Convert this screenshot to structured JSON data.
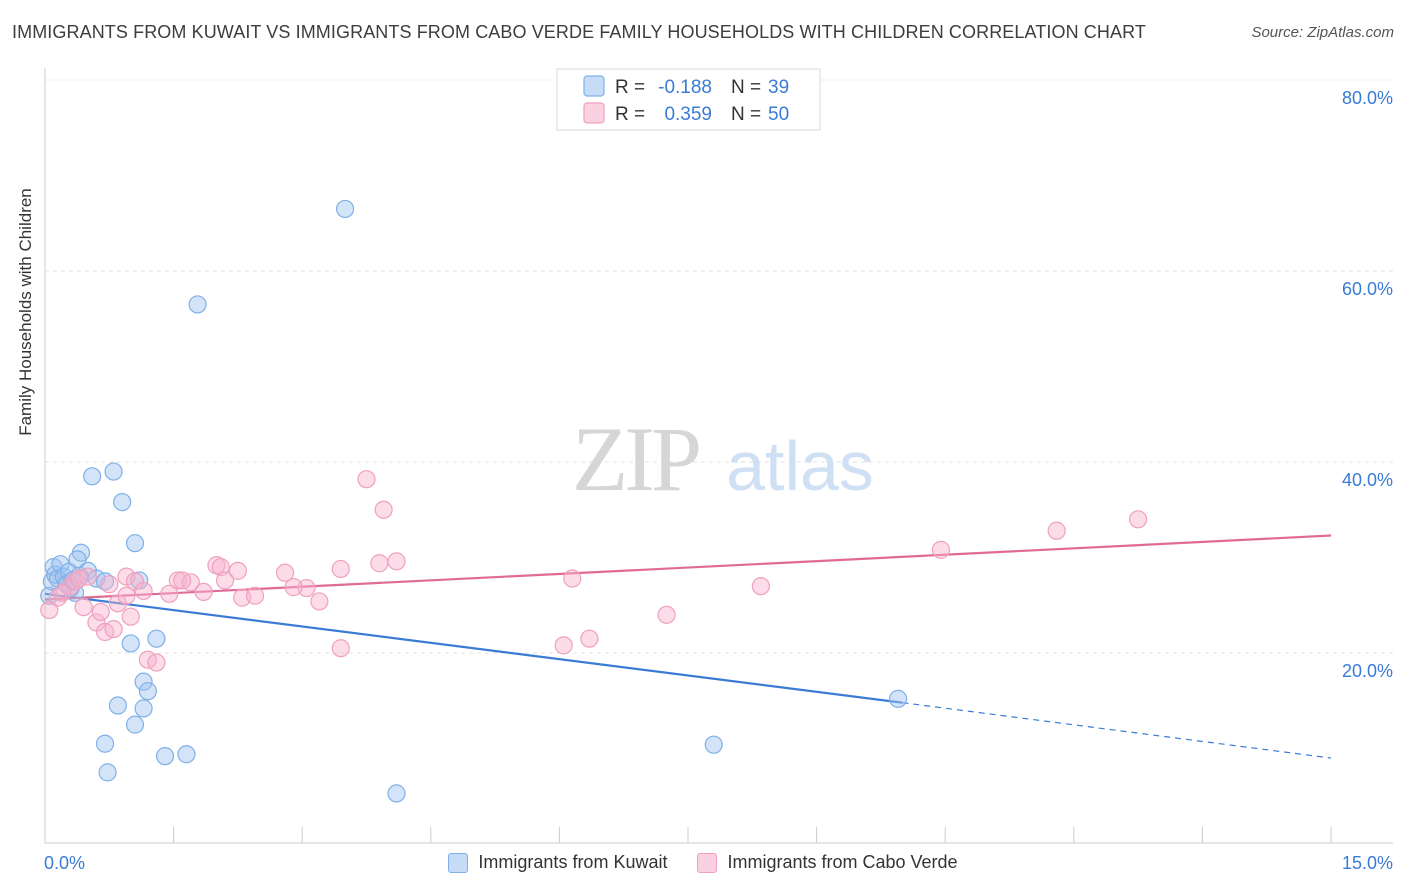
{
  "chart_data": {
    "type": "scatter",
    "title": "IMMIGRANTS FROM KUWAIT VS IMMIGRANTS FROM CABO VERDE FAMILY HOUSEHOLDS WITH CHILDREN CORRELATION CHART",
    "source": "Source: ZipAtlas.com",
    "xlabel": "",
    "ylabel": "Family Households with Children",
    "xlim": [
      0,
      15
    ],
    "ylim": [
      0,
      82
    ],
    "x_tick_labels": [
      "0.0%",
      "15.0%"
    ],
    "y_ticks": [
      20,
      40,
      60,
      80
    ],
    "y_tick_labels": [
      "20.0%",
      "40.0%",
      "60.0%",
      "80.0%"
    ],
    "watermark": {
      "zip": "ZIP",
      "atlas": "atlas"
    },
    "legend_box": {
      "r_label": "R =",
      "n_label": "N =",
      "rows": [
        {
          "r": "-0.188",
          "n": "39"
        },
        {
          "r": "0.359",
          "n": "50"
        }
      ]
    },
    "series": [
      {
        "name": "Immigrants from Kuwait",
        "color": "#7fb0e8",
        "fill": "rgba(160,196,240,0.45)",
        "line_color": "#3a7bd5",
        "points": [
          [
            0.05,
            26.0
          ],
          [
            0.08,
            27.5
          ],
          [
            0.1,
            29.0
          ],
          [
            0.12,
            28.2
          ],
          [
            0.15,
            27.8
          ],
          [
            0.18,
            29.3
          ],
          [
            0.22,
            28.0
          ],
          [
            0.25,
            27.2
          ],
          [
            0.28,
            28.5
          ],
          [
            0.32,
            27.6
          ],
          [
            0.35,
            26.3
          ],
          [
            0.4,
            28.1
          ],
          [
            0.42,
            30.5
          ],
          [
            0.38,
            29.8
          ],
          [
            0.5,
            28.6
          ],
          [
            0.55,
            38.5
          ],
          [
            0.6,
            27.8
          ],
          [
            0.7,
            27.5
          ],
          [
            0.8,
            39.0
          ],
          [
            0.9,
            35.8
          ],
          [
            1.05,
            31.5
          ],
          [
            1.1,
            27.6
          ],
          [
            1.3,
            21.5
          ],
          [
            1.0,
            21.0
          ],
          [
            1.15,
            17.0
          ],
          [
            1.2,
            16.0
          ],
          [
            0.85,
            14.5
          ],
          [
            1.15,
            14.2
          ],
          [
            1.05,
            12.5
          ],
          [
            0.7,
            10.5
          ],
          [
            0.73,
            7.5
          ],
          [
            1.4,
            9.2
          ],
          [
            1.65,
            9.4
          ],
          [
            1.78,
            56.5
          ],
          [
            3.5,
            66.5
          ],
          [
            4.1,
            5.3
          ],
          [
            7.8,
            10.4
          ],
          [
            9.95,
            15.2
          ],
          [
            0.3,
            26.8
          ]
        ],
        "trend": {
          "x1": 0.0,
          "y1": 26.2,
          "x2": 10.0,
          "y2": 14.8,
          "dash_x2": 15.0,
          "dash_y2": 9.0
        }
      },
      {
        "name": "Immigrants from Cabo Verde",
        "color": "#f0a0be",
        "fill": "rgba(246,178,204,0.45)",
        "line_color": "#e06b96",
        "points": [
          [
            0.05,
            24.5
          ],
          [
            0.15,
            25.8
          ],
          [
            0.3,
            27.0
          ],
          [
            0.35,
            27.5
          ],
          [
            0.45,
            24.8
          ],
          [
            0.5,
            28.0
          ],
          [
            0.6,
            23.2
          ],
          [
            0.65,
            24.3
          ],
          [
            0.7,
            22.2
          ],
          [
            0.75,
            27.2
          ],
          [
            0.8,
            22.5
          ],
          [
            0.85,
            25.2
          ],
          [
            0.95,
            26.0
          ],
          [
            0.95,
            28.0
          ],
          [
            1.0,
            23.8
          ],
          [
            1.05,
            27.5
          ],
          [
            1.15,
            26.5
          ],
          [
            1.2,
            19.3
          ],
          [
            1.3,
            19.0
          ],
          [
            1.45,
            26.2
          ],
          [
            1.55,
            27.6
          ],
          [
            1.7,
            27.4
          ],
          [
            1.85,
            26.4
          ],
          [
            2.0,
            29.2
          ],
          [
            2.05,
            29.0
          ],
          [
            2.1,
            27.6
          ],
          [
            2.25,
            28.6
          ],
          [
            2.3,
            25.8
          ],
          [
            2.45,
            26.0
          ],
          [
            2.8,
            28.4
          ],
          [
            3.05,
            26.8
          ],
          [
            3.2,
            25.4
          ],
          [
            3.45,
            20.5
          ],
          [
            3.45,
            28.8
          ],
          [
            3.75,
            38.2
          ],
          [
            3.9,
            29.4
          ],
          [
            3.95,
            35.0
          ],
          [
            4.1,
            29.6
          ],
          [
            6.05,
            20.8
          ],
          [
            6.15,
            27.8
          ],
          [
            6.35,
            21.5
          ],
          [
            7.25,
            24.0
          ],
          [
            8.35,
            27.0
          ],
          [
            10.45,
            30.8
          ],
          [
            11.8,
            32.8
          ],
          [
            12.75,
            34.0
          ],
          [
            0.2,
            26.3
          ],
          [
            0.4,
            27.8
          ],
          [
            1.6,
            27.6
          ],
          [
            2.9,
            26.9
          ]
        ],
        "trend": {
          "x1": 0.0,
          "y1": 25.6,
          "x2": 15.0,
          "y2": 32.3
        }
      }
    ]
  }
}
